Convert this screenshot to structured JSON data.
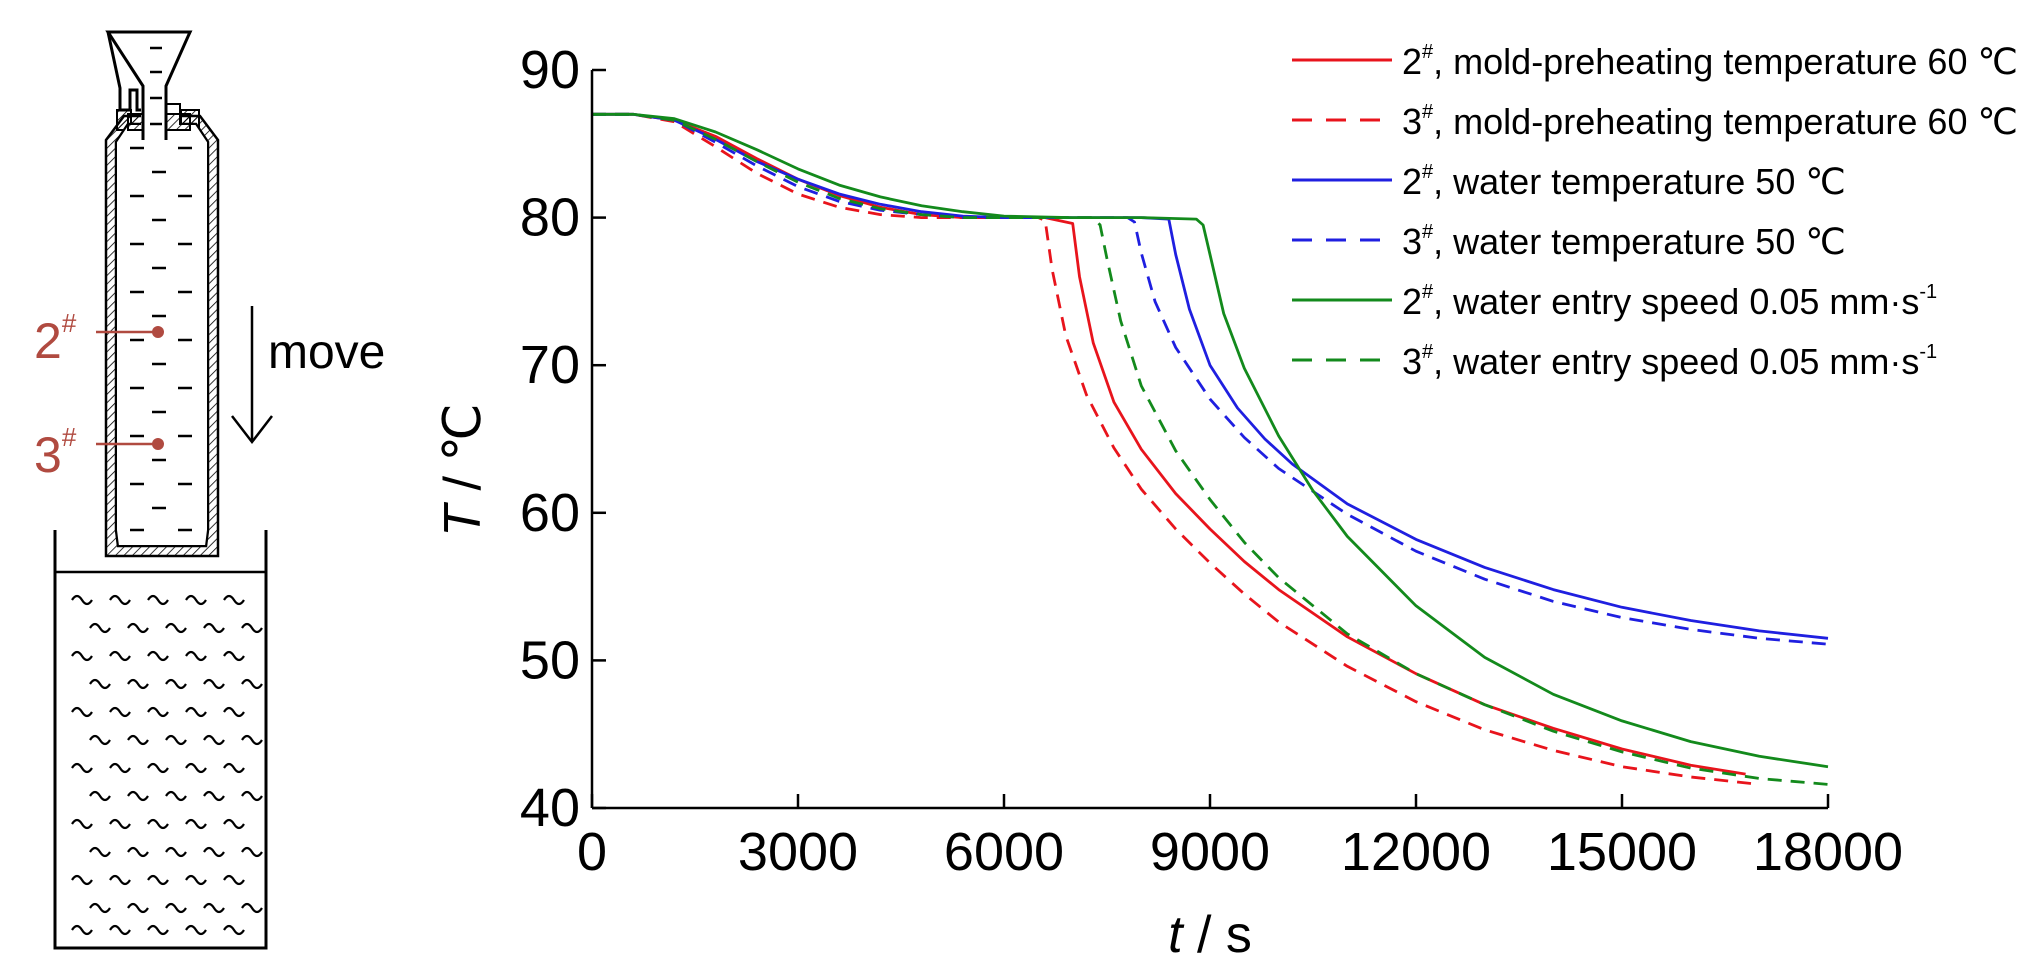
{
  "schematic": {
    "probe_labels": [
      "2",
      "3"
    ],
    "superscript": "#",
    "move_label": "move",
    "colors": {
      "probe": "#b04a40",
      "outline": "#000000"
    }
  },
  "chart_data": {
    "type": "line",
    "xlabel_var": "t",
    "xlabel_unit": " / s",
    "ylabel_var": "T",
    "ylabel_unit": " / ℃",
    "xlim": [
      0,
      18000
    ],
    "ylim": [
      40,
      90
    ],
    "xticks": [
      0,
      3000,
      6000,
      9000,
      12000,
      15000,
      18000
    ],
    "yticks": [
      40,
      50,
      60,
      70,
      80,
      90
    ],
    "grid": false,
    "legend_position": "top-right",
    "series": [
      {
        "name_num": "2",
        "name_sup": "#",
        "name_text": ", mold-preheating temperature 60  ℃",
        "name_exp": "",
        "color": "#e8141c",
        "dash": "solid",
        "x": [
          0,
          600,
          1200,
          1800,
          2400,
          3000,
          3600,
          4200,
          4800,
          5400,
          6000,
          6600,
          7000,
          7100,
          7300,
          7600,
          8000,
          8500,
          9000,
          9500,
          10000,
          11000,
          12000,
          13000,
          14000,
          15000,
          16000,
          16800
        ],
        "y": [
          87.0,
          87.0,
          86.6,
          85.5,
          84.0,
          82.6,
          81.5,
          80.7,
          80.2,
          80.0,
          80.0,
          80.0,
          79.6,
          76.0,
          71.5,
          67.5,
          64.3,
          61.3,
          58.9,
          56.7,
          54.8,
          51.6,
          49.1,
          47.0,
          45.4,
          44.0,
          42.9,
          42.3
        ]
      },
      {
        "name_num": "3",
        "name_sup": "#",
        "name_text": ", mold-preheating temperature 60  ℃",
        "name_exp": "",
        "color": "#e8141c",
        "dash": "dashed",
        "x": [
          0,
          600,
          1200,
          1800,
          2400,
          3000,
          3600,
          4200,
          4800,
          5400,
          6000,
          6500,
          6600,
          6700,
          6900,
          7200,
          7600,
          8000,
          8500,
          9000,
          9500,
          10000,
          11000,
          12000,
          13000,
          14000,
          15000,
          16000,
          17000,
          17000
        ],
        "y": [
          87.0,
          87.0,
          86.5,
          84.8,
          83.0,
          81.6,
          80.7,
          80.2,
          80.0,
          80.0,
          80.0,
          80.0,
          79.8,
          76.5,
          72.0,
          68.0,
          64.4,
          61.6,
          58.9,
          56.6,
          54.5,
          52.6,
          49.6,
          47.2,
          45.3,
          43.9,
          42.8,
          42.1,
          41.6,
          41.6
        ]
      },
      {
        "name_num": "2",
        "name_sup": "#",
        "name_text": ", water temperature 50  ℃",
        "name_exp": "",
        "color": "#1f1fe0",
        "dash": "solid",
        "x": [
          0,
          600,
          1200,
          1800,
          2400,
          3000,
          3600,
          4200,
          4800,
          5400,
          6000,
          7000,
          8000,
          8400,
          8500,
          8700,
          9000,
          9400,
          9800,
          10200,
          11000,
          12000,
          13000,
          14000,
          15000,
          16000,
          17000,
          18000
        ],
        "y": [
          87.0,
          87.0,
          86.6,
          85.3,
          83.8,
          82.6,
          81.6,
          80.9,
          80.4,
          80.1,
          80.0,
          80.0,
          80.0,
          79.9,
          77.5,
          73.8,
          70.0,
          67.1,
          65.0,
          63.3,
          60.6,
          58.2,
          56.3,
          54.8,
          53.6,
          52.7,
          52.0,
          51.5
        ]
      },
      {
        "name_num": "3",
        "name_sup": "#",
        "name_text": ", water temperature 50  ℃",
        "name_exp": "",
        "color": "#1f1fe0",
        "dash": "dashed",
        "x": [
          0,
          600,
          1200,
          1800,
          2400,
          3000,
          3600,
          4200,
          4800,
          5400,
          6000,
          7000,
          7800,
          7900,
          8000,
          8200,
          8500,
          9000,
          9500,
          10000,
          11000,
          12000,
          13000,
          14000,
          15000,
          16000,
          17000,
          18000
        ],
        "y": [
          87.0,
          87.0,
          86.6,
          85.1,
          83.5,
          82.1,
          81.1,
          80.5,
          80.2,
          80.0,
          80.0,
          80.0,
          80.0,
          79.7,
          77.6,
          74.3,
          71.2,
          67.7,
          65.1,
          63.0,
          59.9,
          57.4,
          55.5,
          54.0,
          52.9,
          52.1,
          51.5,
          51.1
        ]
      },
      {
        "name_num": "2",
        "name_sup": "#",
        "name_text": ", water entry speed 0.05 mm·s",
        "name_exp": "-1",
        "color": "#138a1c",
        "dash": "solid",
        "x": [
          0,
          600,
          1200,
          1800,
          2400,
          3000,
          3600,
          4200,
          4800,
          5400,
          6000,
          7000,
          8000,
          8800,
          8900,
          9000,
          9200,
          9500,
          10000,
          10500,
          11000,
          12000,
          13000,
          14000,
          15000,
          16000,
          17000,
          18000
        ],
        "y": [
          87.0,
          87.0,
          86.7,
          85.8,
          84.6,
          83.3,
          82.2,
          81.4,
          80.8,
          80.4,
          80.1,
          80.0,
          80.0,
          79.9,
          79.5,
          77.5,
          73.5,
          69.8,
          65.2,
          61.5,
          58.4,
          53.7,
          50.2,
          47.7,
          45.9,
          44.5,
          43.5,
          42.8
        ]
      },
      {
        "name_num": "3",
        "name_sup": "#",
        "name_text": ", water entry speed 0.05 mm·s",
        "name_exp": "-1",
        "color": "#138a1c",
        "dash": "dashed",
        "x": [
          0,
          600,
          1200,
          1800,
          2400,
          3000,
          3600,
          4200,
          4800,
          5400,
          6000,
          7000,
          7300,
          7400,
          7500,
          7700,
          8000,
          8500,
          9000,
          9500,
          10000,
          11000,
          12000,
          13000,
          14000,
          15000,
          16000,
          17000,
          18000
        ],
        "y": [
          87.0,
          87.0,
          86.6,
          85.3,
          83.8,
          82.4,
          81.3,
          80.6,
          80.2,
          80.0,
          80.0,
          80.0,
          80.0,
          79.5,
          77.2,
          73.0,
          68.6,
          64.2,
          60.9,
          58.0,
          55.6,
          51.8,
          49.1,
          47.0,
          45.2,
          43.8,
          42.7,
          42.0,
          41.6
        ]
      }
    ]
  }
}
